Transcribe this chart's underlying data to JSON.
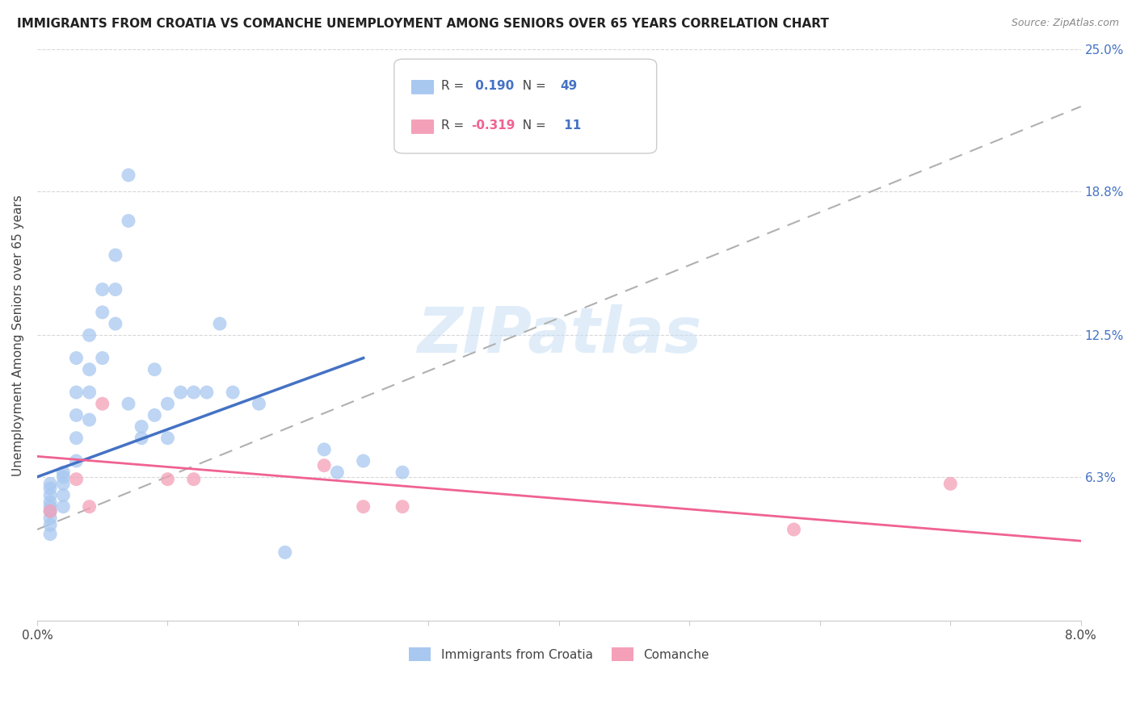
{
  "title": "IMMIGRANTS FROM CROATIA VS COMANCHE UNEMPLOYMENT AMONG SENIORS OVER 65 YEARS CORRELATION CHART",
  "source": "Source: ZipAtlas.com",
  "ylabel": "Unemployment Among Seniors over 65 years",
  "xlim": [
    0.0,
    0.08
  ],
  "ylim": [
    0.0,
    0.25
  ],
  "R_croatia": 0.19,
  "N_croatia": 49,
  "R_comanche": -0.319,
  "N_comanche": 11,
  "legend_label_croatia": "Immigrants from Croatia",
  "legend_label_comanche": "Comanche",
  "color_croatia": "#a8c8f0",
  "color_comanche": "#f4a0b8",
  "line_color_croatia": "#4472c4",
  "line_color_comanche": "#f06292",
  "trend_line_dashed_color": "#b0b0b0",
  "croatia_x": [
    0.001,
    0.001,
    0.001,
    0.001,
    0.001,
    0.001,
    0.001,
    0.001,
    0.001,
    0.002,
    0.002,
    0.002,
    0.002,
    0.002,
    0.003,
    0.003,
    0.003,
    0.003,
    0.003,
    0.004,
    0.004,
    0.004,
    0.004,
    0.005,
    0.005,
    0.005,
    0.006,
    0.006,
    0.006,
    0.007,
    0.007,
    0.007,
    0.008,
    0.008,
    0.009,
    0.009,
    0.01,
    0.01,
    0.011,
    0.012,
    0.013,
    0.014,
    0.015,
    0.017,
    0.019,
    0.022,
    0.023,
    0.025,
    0.028
  ],
  "croatia_y": [
    0.06,
    0.058,
    0.055,
    0.052,
    0.05,
    0.048,
    0.045,
    0.042,
    0.038,
    0.065,
    0.063,
    0.06,
    0.055,
    0.05,
    0.115,
    0.1,
    0.09,
    0.08,
    0.07,
    0.125,
    0.11,
    0.1,
    0.088,
    0.145,
    0.135,
    0.115,
    0.16,
    0.145,
    0.13,
    0.195,
    0.175,
    0.095,
    0.085,
    0.08,
    0.11,
    0.09,
    0.095,
    0.08,
    0.1,
    0.1,
    0.1,
    0.13,
    0.1,
    0.095,
    0.03,
    0.075,
    0.065,
    0.07,
    0.065
  ],
  "comanche_x": [
    0.001,
    0.003,
    0.004,
    0.005,
    0.01,
    0.012,
    0.022,
    0.025,
    0.028,
    0.058,
    0.07
  ],
  "comanche_y": [
    0.048,
    0.062,
    0.05,
    0.095,
    0.062,
    0.062,
    0.068,
    0.05,
    0.05,
    0.04,
    0.06
  ],
  "dashed_line_x0": 0.0,
  "dashed_line_y0": 0.04,
  "dashed_line_x1": 0.08,
  "dashed_line_y1": 0.225
}
